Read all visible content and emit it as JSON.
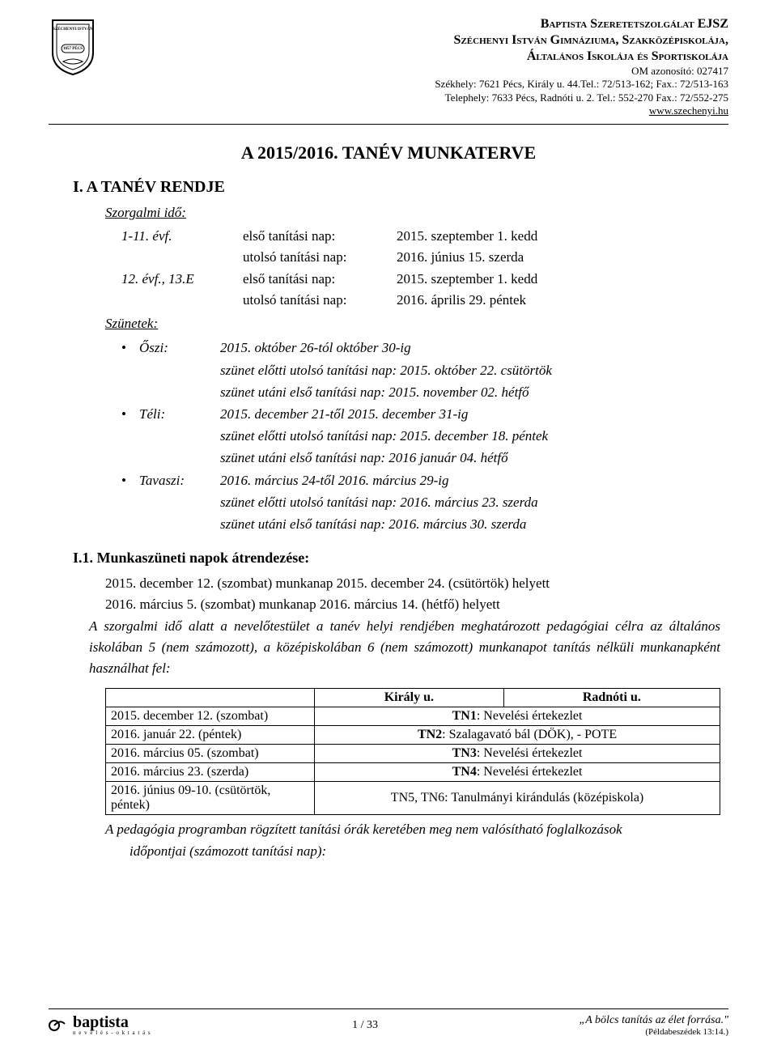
{
  "header": {
    "line1": "Baptista Szeretetszolgálat EJSZ",
    "line2": "Széchenyi István Gimnáziuma, Szakközépiskolája,",
    "line3": "Általános Iskolája és Sportiskolája",
    "om": "OM azonosító: 027417",
    "addr1": "Székhely: 7621 Pécs, Király u. 44.Tel.: 72/513-162; Fax.: 72/513-163",
    "addr2": "Telephely: 7633 Pécs, Radnóti u. 2. Tel.: 552-270 Fax.: 72/552-275",
    "url": "www.szechenyi.hu",
    "logo_top": "SZÉCHENYI ISTVÁN",
    "logo_mid": "ISKOLA",
    "logo_year": "1857  PÉCS"
  },
  "title": "A 2015/2016. TANÉV MUNKATERVE",
  "sec1": {
    "heading": "I.    A TANÉV RENDJE",
    "szorgalmi": "Szorgalmi idő:",
    "rows": [
      {
        "c1": "1-11. évf.",
        "c2": "első tanítási nap:",
        "c3": "2015. szeptember 1. kedd"
      },
      {
        "c1": "",
        "c2": "utolsó tanítási nap:",
        "c3": "2016. június 15. szerda"
      },
      {
        "c1": "12. évf., 13.E",
        "c2": "első tanítási nap:",
        "c3": "2015. szeptember 1. kedd"
      },
      {
        "c1": "",
        "c2": "utolsó tanítási nap:",
        "c3": "2016. április 29. péntek"
      }
    ],
    "szunetek": "Szünetek:",
    "breaks": [
      {
        "label": "Őszi:",
        "main": "2015. október 26-tól október 30-ig",
        "sub1": "szünet előtti utolsó tanítási nap: 2015. október 22. csütörtök",
        "sub2": "szünet utáni első tanítási nap: 2015. november 02. hétfő"
      },
      {
        "label": "Téli:",
        "main": "2015. december 21-től 2015. december 31-ig",
        "sub1": "szünet előtti utolsó tanítási nap: 2015. december 18. péntek",
        "sub2": "szünet utáni első tanítási nap: 2016 január 04. hétfő"
      },
      {
        "label": "Tavaszi:",
        "main": "2016. március 24-től 2016. március 29-ig",
        "sub1": "szünet előtti utolsó tanítási nap: 2016. március 23. szerda",
        "sub2": "szünet utáni első tanítási nap: 2016. március 30. szerda"
      }
    ]
  },
  "sec11": {
    "heading": "I.1.  Munkaszüneti napok átrendezése:",
    "p1": "2015. december 12. (szombat) munkanap 2015. december 24. (csütörtök) helyett",
    "p2": "2016. március 5. (szombat) munkanap 2016. március 14. (hétfő) helyett",
    "p3": "A szorgalmi idő alatt a nevelőtestület a tanév helyi rendjében meghatározott pedagógiai célra az általános iskolában 5 (nem számozott), a középiskolában 6 (nem számozott) munkanapot tanítás nélküli munkanapként használhat fel:"
  },
  "table": {
    "head_col2": "Király u.",
    "head_col3": "Radnóti u.",
    "rows": [
      {
        "date": "2015. december 12. (szombat)",
        "event": "TN1: Nevelési értekezlet",
        "span": true
      },
      {
        "date": "2016. január 22. (péntek)",
        "event": "TN2: Szalagavató bál (DÖK), - POTE",
        "span": true
      },
      {
        "date": "2016. március 05. (szombat)",
        "event": "TN3: Nevelési értekezlet",
        "span": true
      },
      {
        "date": "2016. március 23. (szerda)",
        "event": "TN4: Nevelési értekezlet",
        "span": true
      },
      {
        "date": "2016. június 09-10. (csütörtök, péntek)",
        "event": "TN5, TN6: Tanulmányi kirándulás (középiskola)",
        "span": true
      }
    ]
  },
  "after": {
    "p1": "A pedagógia programban rögzített tanítási órák keretében meg nem valósítható foglalkozások",
    "p2": "időpontjai (számozott tanítási nap):"
  },
  "footer": {
    "brand": "baptista",
    "brand_sub": "n e v e l é s - o k t a t á s",
    "pager": "1 / 33",
    "quote": "„A bölcs tanítás az élet forrása.\"",
    "ref": "(Példabeszédek 13:14.)"
  }
}
